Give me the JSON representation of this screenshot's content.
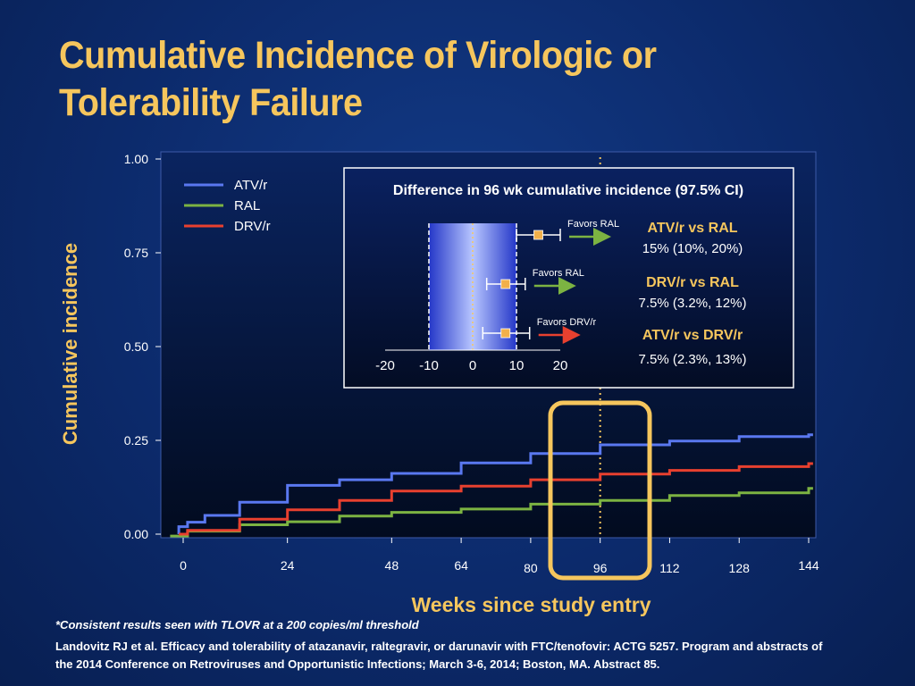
{
  "title": "Cumulative Incidence of Virologic or Tolerability Failure",
  "footnote": "*Consistent results seen with TLOVR at a 200 copies/ml threshold",
  "reference": "Landovitz RJ et al. Efficacy and tolerability of atazanavir, raltegravir, or darunavir with FTC/tenofovir: ACTG 5257. Program and abstracts of the 2014 Conference on Retroviruses and Opportunistic Infections; March 3-6, 2014; Boston, MA. Abstract 85.",
  "colors": {
    "title": "#f6c65d",
    "atv": "#5a78f0",
    "ral": "#7cb342",
    "drv": "#e8402f",
    "highlight_box": "#f6c65d",
    "marker": "#f2b04a"
  },
  "chart_data": [
    {
      "type": "line",
      "step": true,
      "xlabel": "Weeks since study entry",
      "ylabel": "Cumulative incidence",
      "xlim": [
        -3,
        145
      ],
      "ylim": [
        0,
        1.0
      ],
      "x_ticks": [
        0,
        24,
        48,
        64,
        80,
        96,
        112,
        128,
        144
      ],
      "y_ticks": [
        "0.00",
        "0.25",
        "0.50",
        "0.75",
        "1.00"
      ],
      "y_tick_values": [
        0,
        0.25,
        0.5,
        0.75,
        1.0
      ],
      "reference_line_x": 96,
      "legend": "top-left",
      "series": [
        {
          "name": "ATV/r",
          "color": "#5a78f0",
          "points": [
            [
              -1,
              0
            ],
            [
              -1,
              0.02
            ],
            [
              1,
              0.02
            ],
            [
              1,
              0.032
            ],
            [
              5,
              0.032
            ],
            [
              5,
              0.05
            ],
            [
              13,
              0.05
            ],
            [
              13,
              0.085
            ],
            [
              24,
              0.085
            ],
            [
              24,
              0.13
            ],
            [
              36,
              0.13
            ],
            [
              36,
              0.145
            ],
            [
              48,
              0.145
            ],
            [
              48,
              0.162
            ],
            [
              64,
              0.162
            ],
            [
              64,
              0.19
            ],
            [
              80,
              0.19
            ],
            [
              80,
              0.215
            ],
            [
              96,
              0.215
            ],
            [
              96,
              0.238
            ],
            [
              112,
              0.238
            ],
            [
              112,
              0.248
            ],
            [
              128,
              0.248
            ],
            [
              128,
              0.26
            ],
            [
              144,
              0.26
            ],
            [
              144,
              0.265
            ],
            [
              145,
              0.265
            ]
          ]
        },
        {
          "name": "RAL",
          "color": "#7cb342",
          "points": [
            [
              -3,
              -0.005
            ],
            [
              1,
              -0.005
            ],
            [
              1,
              0.008
            ],
            [
              13,
              0.008
            ],
            [
              13,
              0.025
            ],
            [
              24,
              0.025
            ],
            [
              24,
              0.033
            ],
            [
              36,
              0.033
            ],
            [
              36,
              0.048
            ],
            [
              48,
              0.048
            ],
            [
              48,
              0.058
            ],
            [
              64,
              0.058
            ],
            [
              64,
              0.067
            ],
            [
              80,
              0.067
            ],
            [
              80,
              0.08
            ],
            [
              96,
              0.08
            ],
            [
              96,
              0.09
            ],
            [
              112,
              0.09
            ],
            [
              112,
              0.103
            ],
            [
              128,
              0.103
            ],
            [
              128,
              0.11
            ],
            [
              144,
              0.11
            ],
            [
              144,
              0.122
            ],
            [
              145,
              0.122
            ]
          ]
        },
        {
          "name": "DRV/r",
          "color": "#e8402f",
          "points": [
            [
              -1,
              0
            ],
            [
              1,
              0
            ],
            [
              1,
              0.01
            ],
            [
              5,
              0.01
            ],
            [
              5,
              0.01
            ],
            [
              13,
              0.01
            ],
            [
              13,
              0.04
            ],
            [
              24,
              0.04
            ],
            [
              24,
              0.065
            ],
            [
              36,
              0.065
            ],
            [
              36,
              0.09
            ],
            [
              48,
              0.09
            ],
            [
              48,
              0.115
            ],
            [
              64,
              0.115
            ],
            [
              64,
              0.128
            ],
            [
              80,
              0.128
            ],
            [
              80,
              0.145
            ],
            [
              96,
              0.145
            ],
            [
              96,
              0.16
            ],
            [
              112,
              0.16
            ],
            [
              112,
              0.17
            ],
            [
              128,
              0.17
            ],
            [
              128,
              0.18
            ],
            [
              144,
              0.18
            ],
            [
              144,
              0.188
            ],
            [
              145,
              0.188
            ]
          ]
        }
      ]
    },
    {
      "type": "forest",
      "title": "Difference in 96 wk cumulative incidence (97.5% CI)",
      "x_ticks": [
        -20,
        -10,
        0,
        10,
        20
      ],
      "xlim": [
        -20,
        20
      ],
      "equivalence_band": [
        -10,
        10
      ],
      "rows": [
        {
          "comparison": "ATV/r vs RAL",
          "estimate": 15,
          "ci_low": 10,
          "ci_high": 20,
          "text": "15% (10%, 20%)",
          "favors": "Favors RAL",
          "arrow_color": "#7cb342"
        },
        {
          "comparison": "DRV/r vs RAL",
          "estimate": 7.5,
          "ci_low": 3.2,
          "ci_high": 12,
          "text": "7.5% (3.2%, 12%)",
          "favors": "Favors RAL",
          "arrow_color": "#7cb342"
        },
        {
          "comparison": "ATV/r vs DRV/r",
          "estimate": 7.5,
          "ci_low": 2.3,
          "ci_high": 13,
          "text": "7.5% (2.3%, 13%)",
          "favors": "Favors DRV/r",
          "arrow_color": "#e8402f"
        }
      ]
    }
  ]
}
